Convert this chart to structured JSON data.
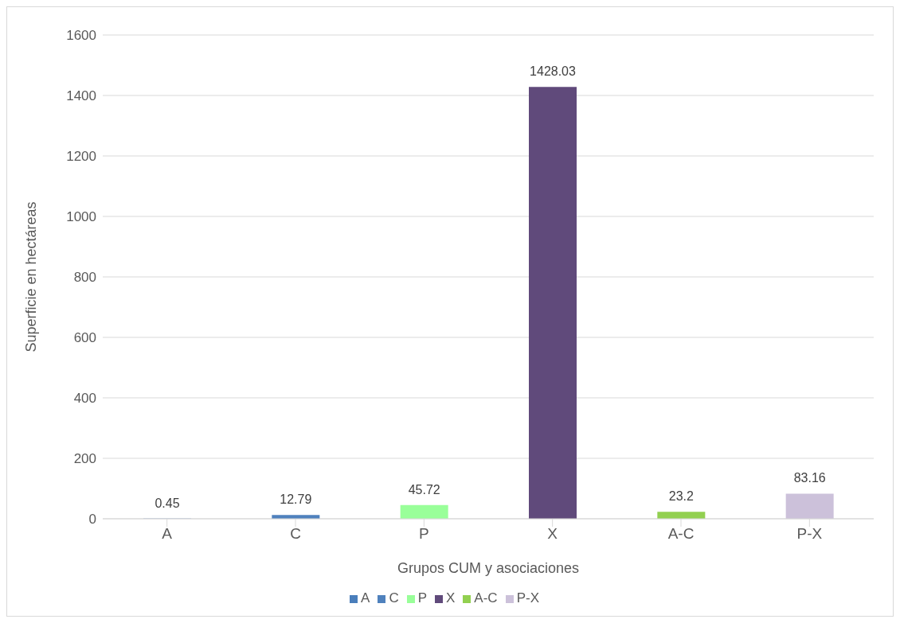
{
  "chart_data": {
    "type": "bar",
    "xlabel": "Grupos CUM y asociaciones",
    "ylabel": "Superficie en hectáreas",
    "categories": [
      "A",
      "C",
      "P",
      "X",
      "A-C",
      "P-X"
    ],
    "stacked": true,
    "series": [
      {
        "name": "A",
        "color": "#4a7ebb",
        "values": [
          0.45,
          null,
          null,
          null,
          null,
          null
        ]
      },
      {
        "name": "C",
        "color": "#4f81bd",
        "values": [
          null,
          12.79,
          null,
          null,
          null,
          null
        ]
      },
      {
        "name": "P",
        "color": "#99ff99",
        "values": [
          null,
          null,
          45.72,
          null,
          null,
          null
        ]
      },
      {
        "name": "X",
        "color": "#604a7b",
        "values": [
          null,
          null,
          null,
          1428.03,
          null,
          null
        ]
      },
      {
        "name": "A-C",
        "color": "#92d050",
        "values": [
          null,
          null,
          null,
          null,
          23.2,
          null
        ]
      },
      {
        "name": "P-X",
        "color": "#ccc1da",
        "values": [
          null,
          null,
          null,
          null,
          null,
          83.16
        ]
      }
    ],
    "ylim": [
      0,
      1600
    ],
    "yticks": [
      0,
      200,
      400,
      600,
      800,
      1000,
      1200,
      1400,
      1600
    ],
    "grid": "y",
    "legend": "bottom",
    "data_labels": true
  }
}
